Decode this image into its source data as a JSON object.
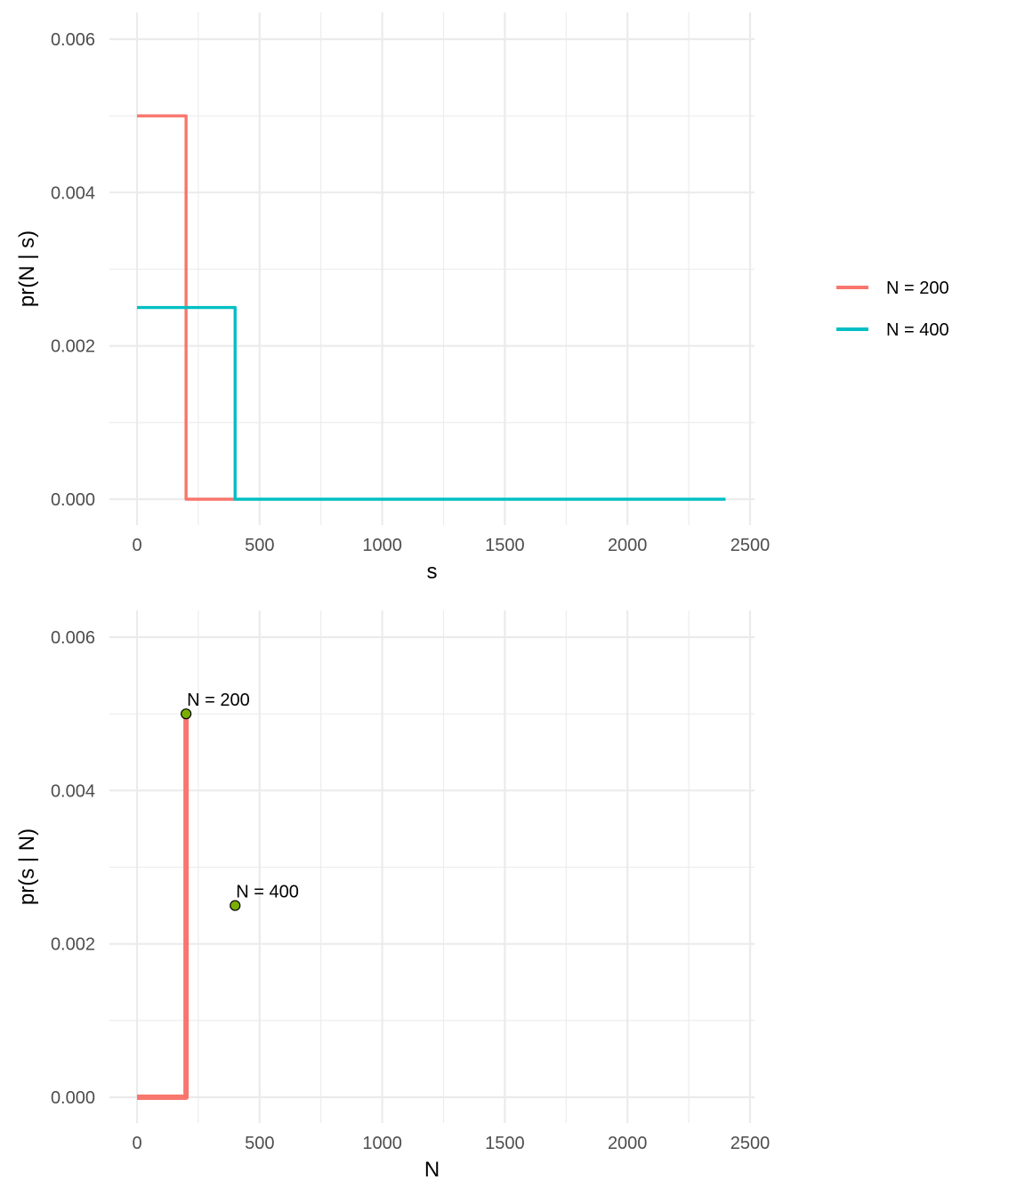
{
  "chart_data": [
    {
      "type": "line",
      "xlabel": "s",
      "ylabel": "pr(N | s)",
      "xlim": [
        0,
        2500
      ],
      "ylim": [
        0,
        0.006
      ],
      "x_ticks": [
        0,
        500,
        1000,
        1500,
        2000,
        2500
      ],
      "x_tick_labels": [
        "0",
        "500",
        "1000",
        "1500",
        "2000",
        "2500"
      ],
      "y_ticks": [
        0,
        0.002,
        0.004,
        0.006
      ],
      "y_tick_labels": [
        "0.000",
        "0.002",
        "0.004",
        "0.006"
      ],
      "grid": true,
      "legend_position": "right",
      "series": [
        {
          "name": "N = 200",
          "color": "#F8766D",
          "x": [
            0,
            200,
            200,
            400
          ],
          "y": [
            0.005,
            0.005,
            0,
            0
          ]
        },
        {
          "name": "N = 400",
          "color": "#00BFC4",
          "x": [
            0,
            400,
            400,
            2400
          ],
          "y": [
            0.0025,
            0.0025,
            0,
            0
          ]
        }
      ]
    },
    {
      "type": "line",
      "xlabel": "N",
      "ylabel": "pr(s | N)",
      "xlim": [
        0,
        2500
      ],
      "ylim": [
        0,
        0.006
      ],
      "x_ticks": [
        0,
        500,
        1000,
        1500,
        2000,
        2500
      ],
      "x_tick_labels": [
        "0",
        "500",
        "1000",
        "1500",
        "2000",
        "2500"
      ],
      "y_ticks": [
        0,
        0.002,
        0.004,
        0.006
      ],
      "y_tick_labels": [
        "0.000",
        "0.002",
        "0.004",
        "0.006"
      ],
      "grid": true,
      "series": [
        {
          "color": "#F8766D",
          "x": [
            0,
            200,
            200
          ],
          "y": [
            0,
            0,
            0.005
          ]
        }
      ],
      "points": [
        {
          "x": 200,
          "y": 0.005,
          "label": "N = 200",
          "color": "#7CAE00"
        },
        {
          "x": 400,
          "y": 0.0025,
          "label": "N = 400",
          "color": "#7CAE00"
        }
      ]
    }
  ]
}
